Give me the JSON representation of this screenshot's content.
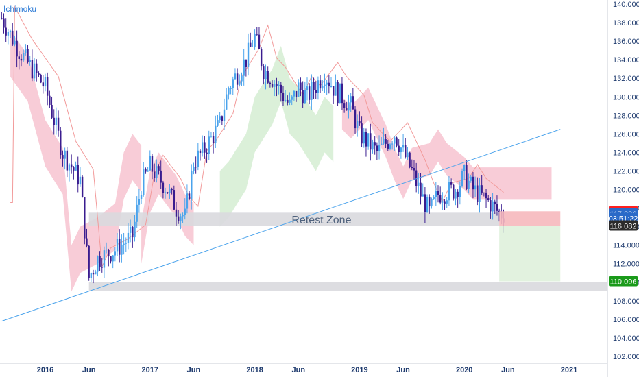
{
  "indicator_label": "Ichimoku",
  "zone_label": "Retest Zone",
  "chart_data": {
    "type": "candlestick",
    "ylim": [
      102,
      140
    ],
    "xlim": [
      "2015-08",
      "2021-03"
    ],
    "y_ticks": [
      140.0,
      138.0,
      136.0,
      134.0,
      132.0,
      130.0,
      128.0,
      126.0,
      124.0,
      122.0,
      120.0,
      118.0,
      116.0,
      114.0,
      112.0,
      110.0,
      108.0,
      106.0,
      104.0,
      102.0
    ],
    "x_ticks": [
      {
        "label": "2016",
        "date": "2016-01"
      },
      {
        "label": "Jun",
        "date": "2016-06"
      },
      {
        "label": "2017",
        "date": "2017-01"
      },
      {
        "label": "Jun",
        "date": "2017-06"
      },
      {
        "label": "2018",
        "date": "2018-01"
      },
      {
        "label": "Jun",
        "date": "2018-06"
      },
      {
        "label": "2019",
        "date": "2019-01"
      },
      {
        "label": "Jun",
        "date": "2019-06"
      },
      {
        "label": "2020",
        "date": "2020-01"
      },
      {
        "label": "Jun",
        "date": "2020-06"
      },
      {
        "label": "2021",
        "date": "2021-01"
      }
    ],
    "price_tags": [
      {
        "value": 117.652,
        "label": "117.652",
        "color": "#ff1f1f",
        "text_color": "#ffffff"
      },
      {
        "value": 117.39,
        "label": "117.390",
        "color": "#2a6ac8",
        "text_color": "#ffffff"
      },
      {
        "value": 116.9,
        "label": "03:51:22",
        "color": "#2a6ac8",
        "text_color": "#ffffff"
      },
      {
        "value": 116.082,
        "label": "116.082",
        "color": "#2b2b2b",
        "text_color": "#ffffff"
      },
      {
        "value": 110.096,
        "label": "110.096",
        "color": "#1a9a1a",
        "text_color": "#ffffff"
      }
    ],
    "retest_zone": {
      "x_start": "2016-06",
      "x_end": "2020-05",
      "y_low": 116.1,
      "y_high": 117.5
    },
    "support_zone": {
      "x_start": "2016-06",
      "x_end": "2021-03",
      "y_low": 109.1,
      "y_high": 110.0
    },
    "trendline": {
      "x1": "2015-08",
      "y1": 105.8,
      "x2": "2020-12",
      "y2": 126.5
    },
    "position": {
      "x_start": "2020-05",
      "x_end": "2020-12",
      "entry": 116.082,
      "stop": 117.652,
      "target": 110.096
    },
    "colors": {
      "up": "#4aa3ec",
      "down": "#3a1c8f",
      "cloud_bear": "#f7c6d3",
      "cloud_bull": "#d7eed5",
      "trendline": "#4aa3ec",
      "baseline": "#f29a9a",
      "zone": "#d9d9de"
    }
  }
}
